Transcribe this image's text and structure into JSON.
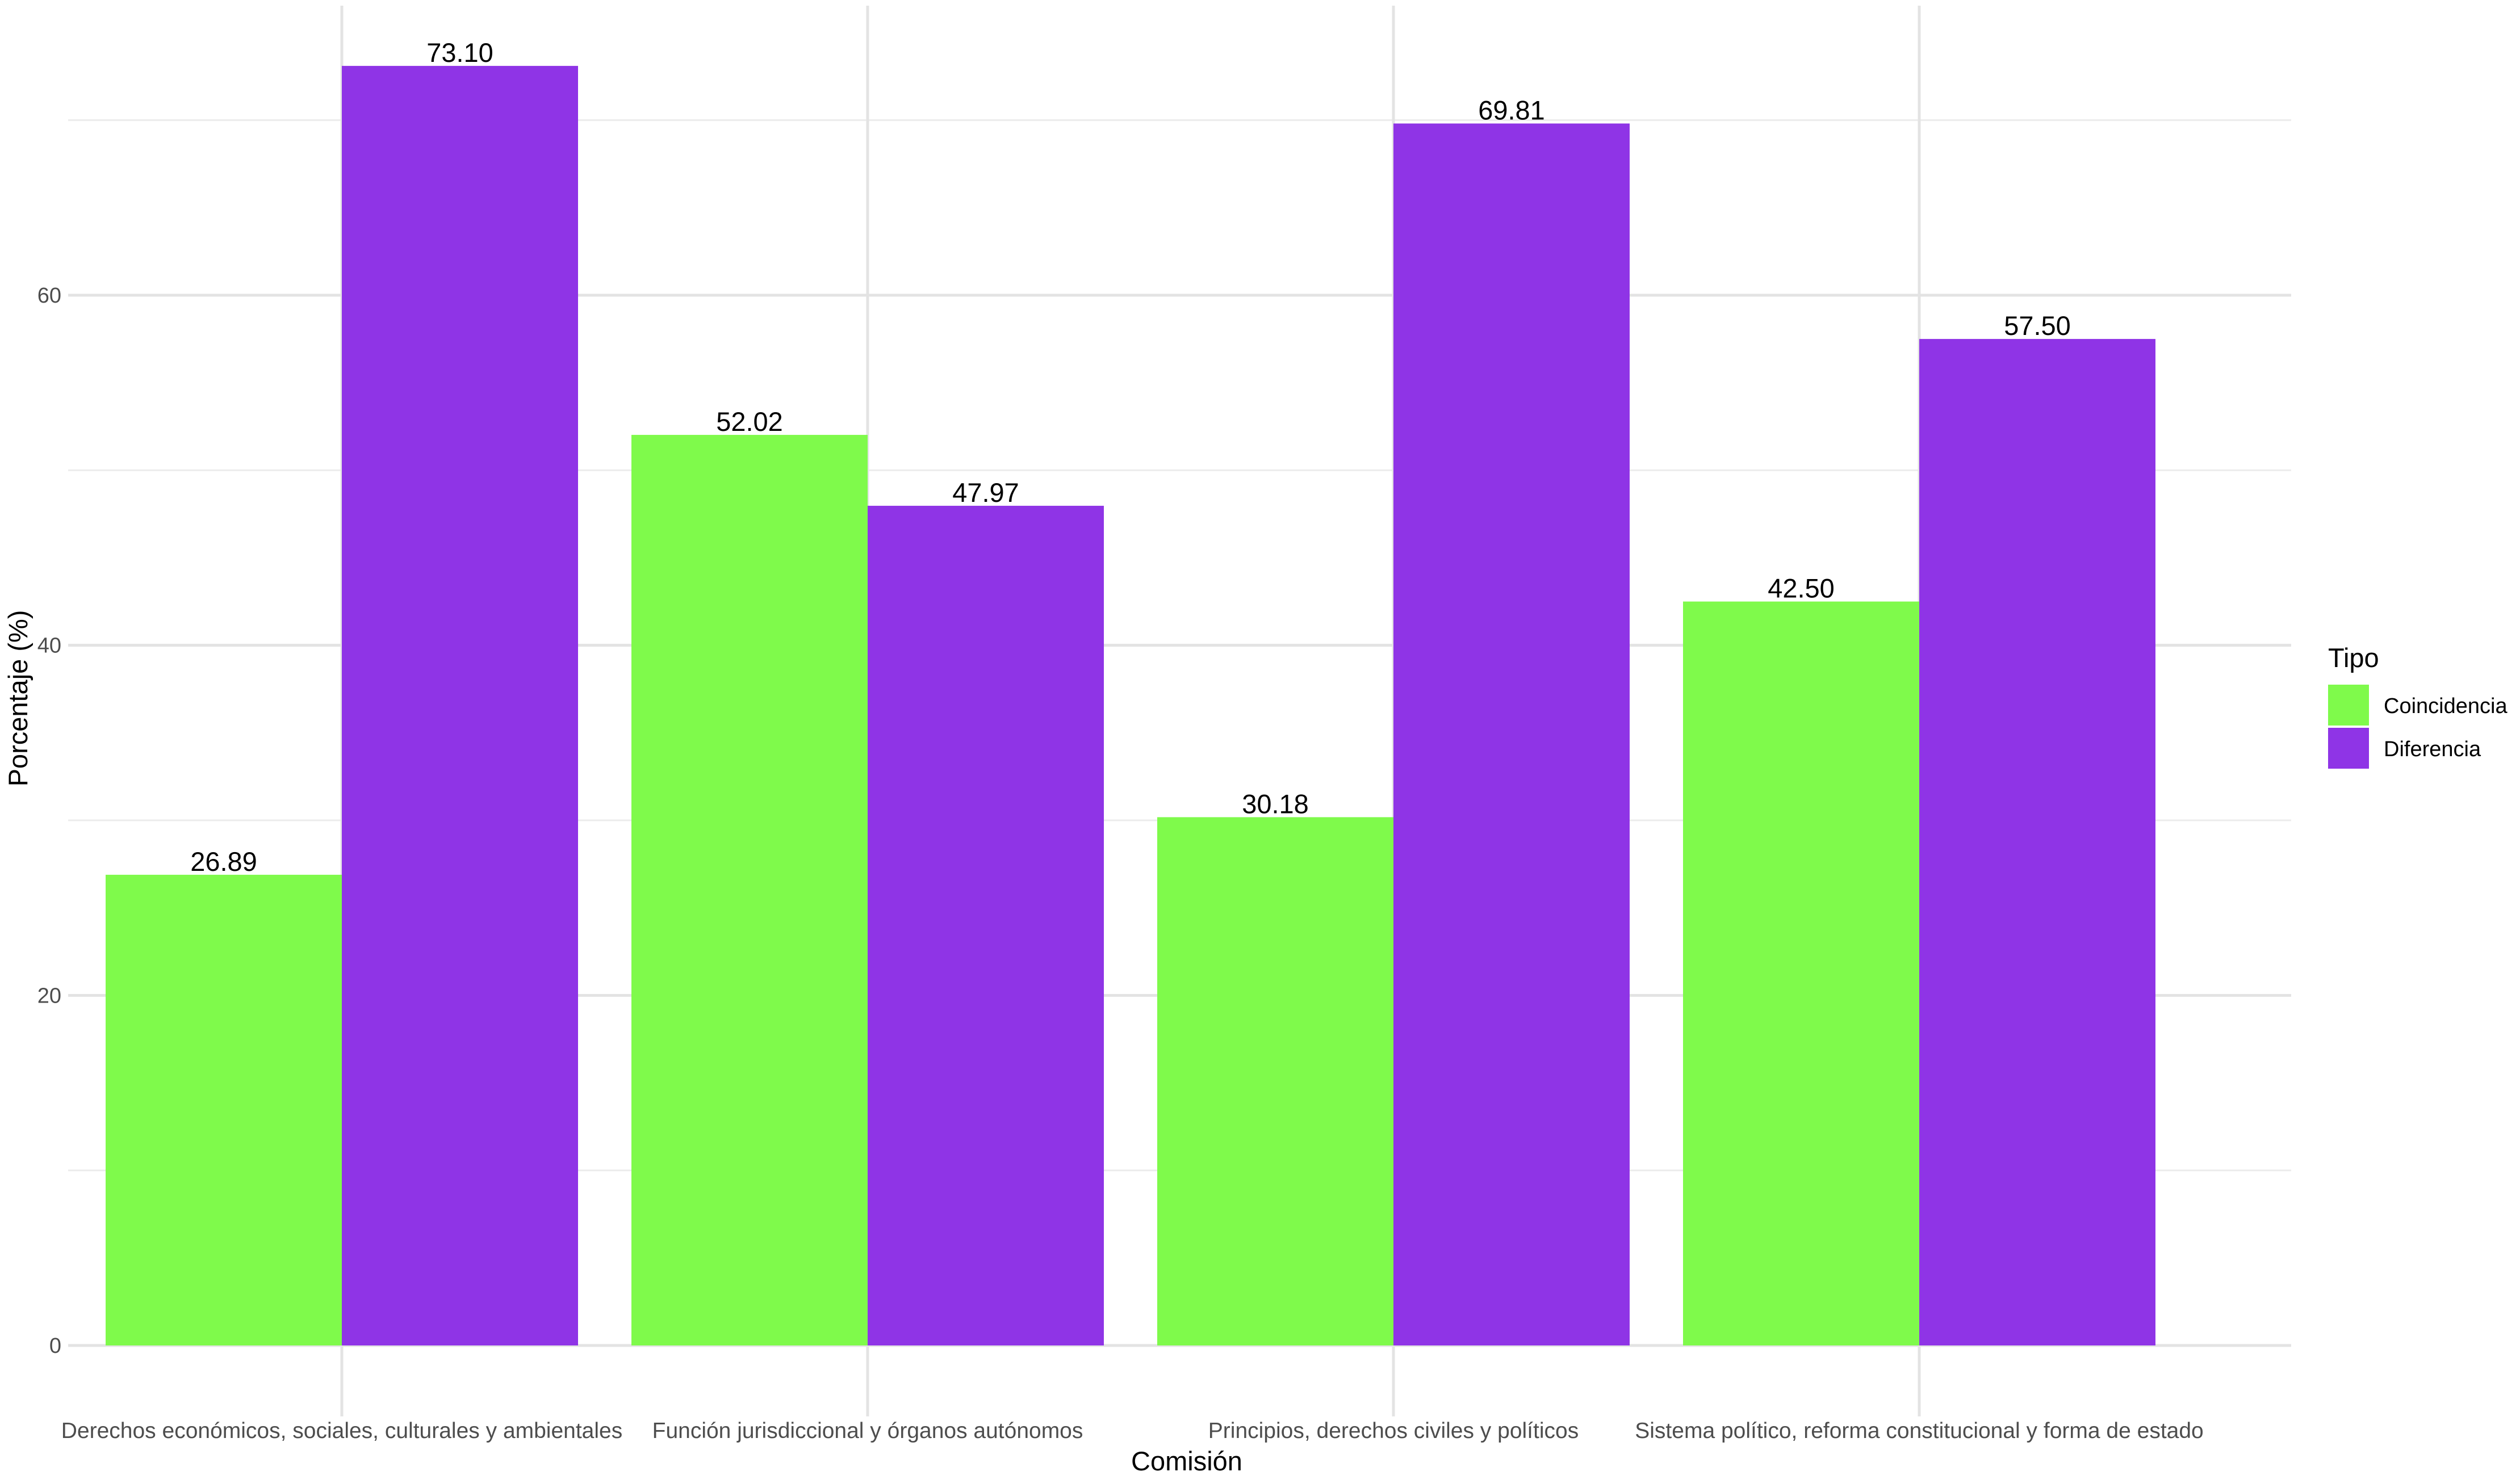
{
  "chart_data": {
    "type": "bar",
    "title": "",
    "xlabel": "Comisión",
    "ylabel": "Porcentaje (%)",
    "categories": [
      "Derechos económicos, sociales, culturales y ambientales",
      "Función jurisdiccional y órganos autónomos",
      "Principios, derechos civiles y políticos",
      "Sistema político, reforma constitucional y forma de estado"
    ],
    "series": [
      {
        "name": "Coincidencia",
        "color": "#7FFA4B",
        "values": [
          26.89,
          52.02,
          30.18,
          42.5
        ],
        "labels": [
          "26.89",
          "52.02",
          "30.18",
          "42.50"
        ]
      },
      {
        "name": "Diferencia",
        "color": "#8F34E6",
        "values": [
          73.1,
          47.97,
          69.81,
          57.5
        ],
        "labels": [
          "73.10",
          "47.97",
          "69.81",
          "57.50"
        ]
      }
    ],
    "yticks": [
      0,
      20,
      40,
      60
    ],
    "ytick_labels": [
      "0",
      "20",
      "40",
      "60"
    ],
    "ylim": [
      0,
      76.6
    ],
    "grid": true,
    "legend": {
      "title": "Tipo",
      "position": "right"
    }
  }
}
